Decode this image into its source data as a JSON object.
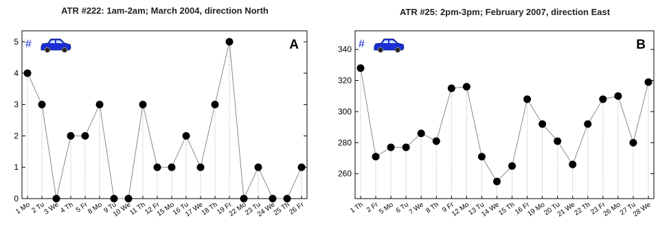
{
  "chart_data": [
    {
      "type": "line",
      "title": "ATR #222: 1am-2am; March 2004, direction North",
      "panel_label": "A",
      "marker_symbol": "#",
      "icon": "car-icon",
      "categories": [
        "1 Mo",
        "2 Tu",
        "3 We",
        "4 Th",
        "5 Fr",
        "8 Mo",
        "9 Tu",
        "10 We",
        "11 Th",
        "12 Fr",
        "15 Mo",
        "16 Tu",
        "17 We",
        "18 Th",
        "19 Fr",
        "22 Mo",
        "23 Tu",
        "24 We",
        "25 Th",
        "26 Fr"
      ],
      "values": [
        4,
        3,
        0,
        2,
        2,
        3,
        0,
        0,
        3,
        1,
        1,
        2,
        1,
        3,
        5,
        0,
        1,
        0,
        0,
        1
      ],
      "ylim": [
        0,
        5.35
      ],
      "yticks": [
        "0",
        "1",
        "2",
        "3",
        "4",
        "5"
      ],
      "grid": "dotted vertical drop lines",
      "line_color": "#888888",
      "marker_color": "#000000",
      "icon_color": "#1a2fd6"
    },
    {
      "type": "line",
      "title": "ATR #25: 2pm-3pm; February 2007, direction East",
      "panel_label": "B",
      "marker_symbol": "#",
      "icon": "car-icon",
      "categories": [
        "1 Th",
        "2 Fr",
        "5 Mo",
        "6 Tu",
        "7 We",
        "8 Th",
        "9 Fr",
        "12 Mo",
        "13 Tu",
        "14 We",
        "15 Th",
        "16 Fr",
        "19 Mo",
        "20 Tu",
        "21 We",
        "22 Th",
        "23 Fr",
        "26 Mo",
        "27 Tu",
        "28 We"
      ],
      "values": [
        328,
        271,
        277,
        277,
        286,
        281,
        315,
        316,
        271,
        255,
        265,
        308,
        292,
        281,
        266,
        292,
        308,
        310,
        280,
        319
      ],
      "ylim": [
        244,
        352
      ],
      "yticks": [
        "260",
        "280",
        "300",
        "320",
        "340"
      ],
      "grid": "dotted vertical drop lines",
      "line_color": "#888888",
      "marker_color": "#000000",
      "icon_color": "#1a2fd6"
    }
  ]
}
